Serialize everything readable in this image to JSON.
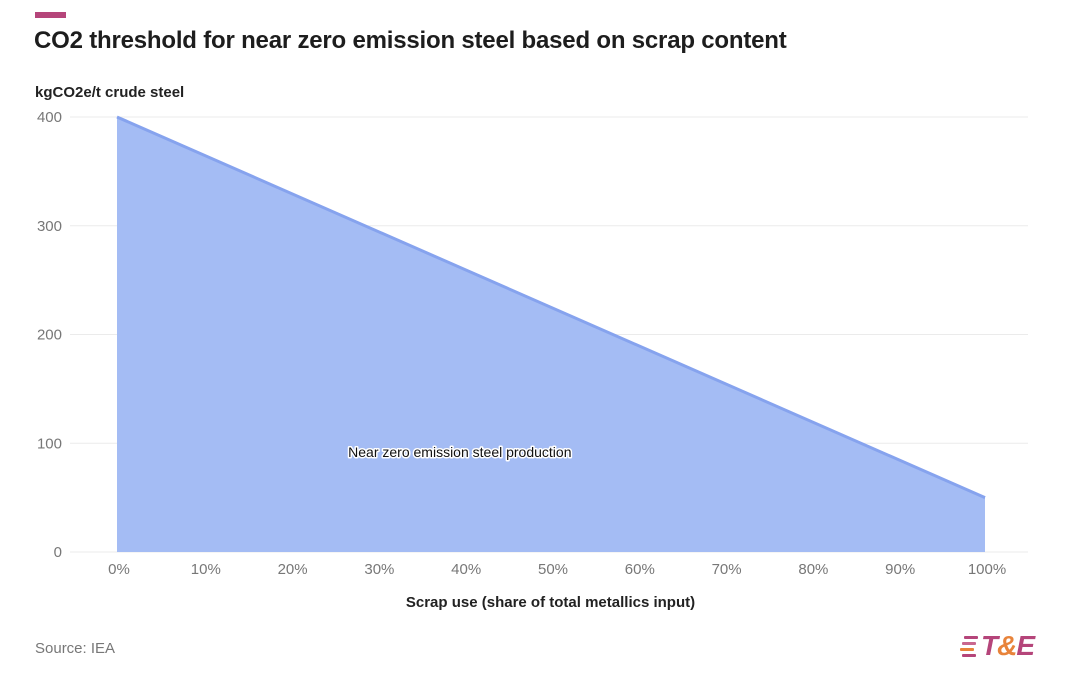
{
  "header": {
    "title": "CO2 threshold for near zero emission steel based on scrap content"
  },
  "chart_data": {
    "type": "area",
    "title": "CO2 threshold for near zero emission steel based on scrap content",
    "ylabel": "kgCO2e/t crude steel",
    "xlabel": "Scrap use (share of total metallics input)",
    "x": [
      0,
      100
    ],
    "xlim": [
      0,
      100
    ],
    "ylim": [
      0,
      400
    ],
    "x_ticks": [
      "0%",
      "10%",
      "20%",
      "30%",
      "40%",
      "50%",
      "60%",
      "70%",
      "80%",
      "90%",
      "100%"
    ],
    "x_tick_values": [
      0,
      10,
      20,
      30,
      40,
      50,
      60,
      70,
      80,
      90,
      100
    ],
    "y_ticks": [
      "0",
      "100",
      "200",
      "300",
      "400"
    ],
    "y_tick_values": [
      0,
      100,
      200,
      300,
      400
    ],
    "series": [
      {
        "values": [
          400,
          50
        ],
        "fill_color": "#a4bcf4",
        "line_color": "#86a3ee"
      }
    ],
    "annotations": [
      {
        "text": "Near zero emission steel production",
        "x": 38,
        "y": 92
      }
    ],
    "grid": true
  },
  "footer": {
    "source": "Source: IEA",
    "logo": {
      "t": "T",
      "amp": "&",
      "e": "E",
      "text": "T&E",
      "colors": {
        "primary": "#b5457a",
        "secondary": "#e8833a"
      }
    }
  },
  "colors": {
    "accent": "#b5457a",
    "area": "#a4bcf4",
    "line": "#86a3ee",
    "grid": "#ebebeb"
  }
}
